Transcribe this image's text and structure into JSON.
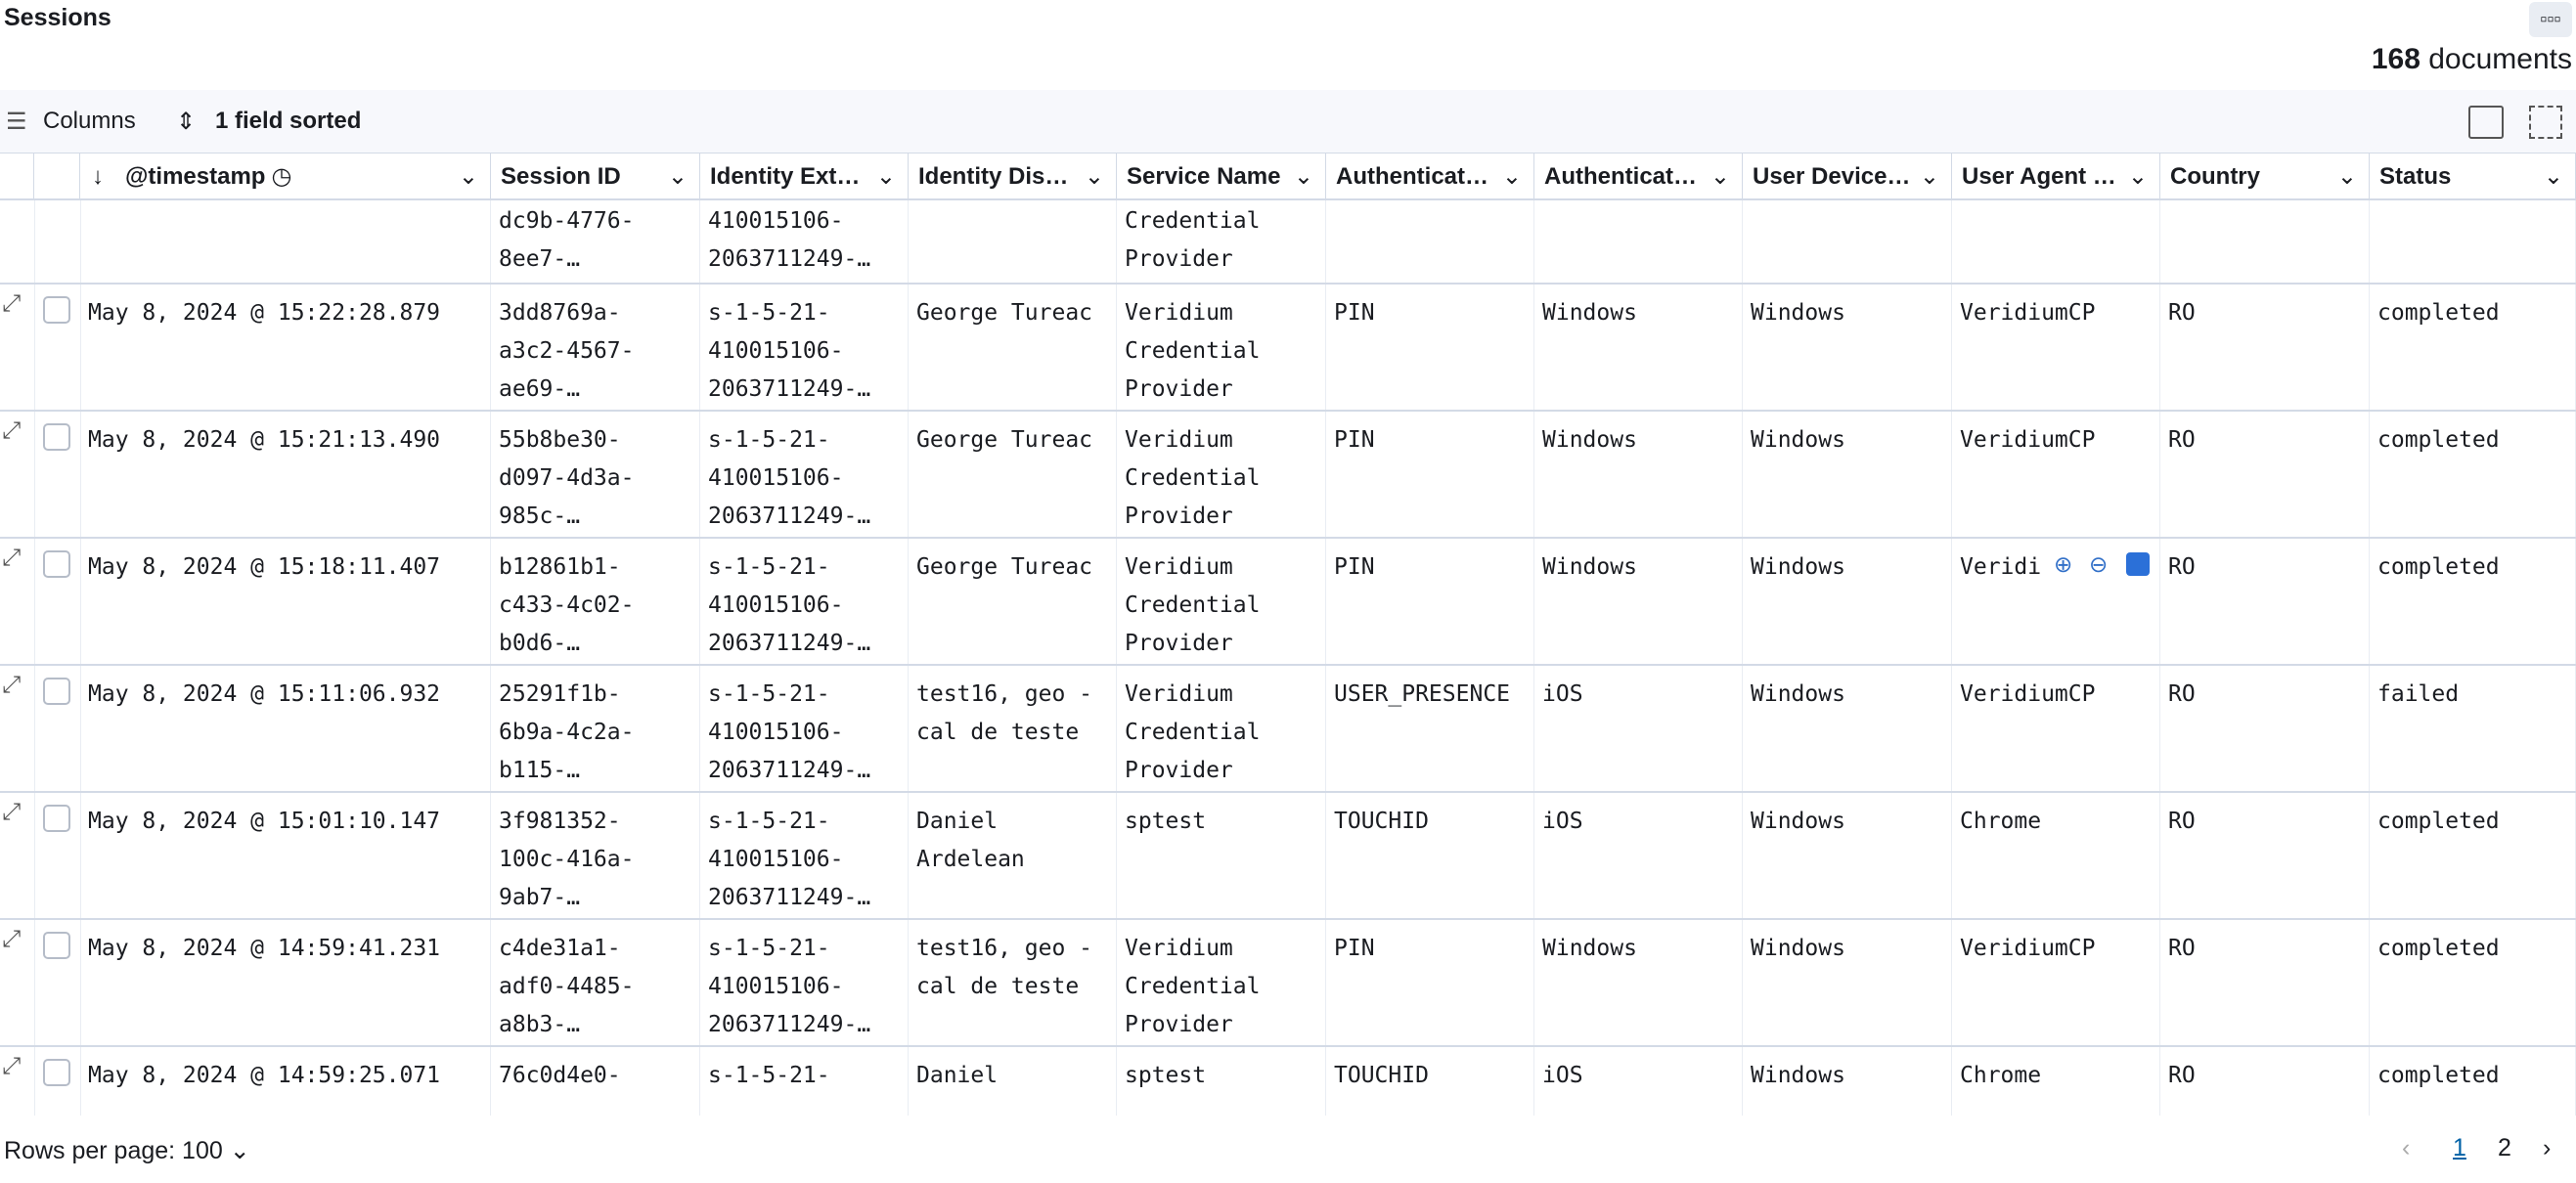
{
  "header": {
    "title": "Sessions",
    "count": "168",
    "count_label": "documents"
  },
  "toolbar": {
    "columns": "Columns",
    "sort": "1 field sorted"
  },
  "table": {
    "columns": [
      "@timestamp",
      "Session ID",
      "Identity Ext…",
      "Identity Dis…",
      "Service Name",
      "Authenticat…",
      "Authenticat…",
      "User Device…",
      "User Agent …",
      "Country",
      "Status"
    ],
    "rows": [
      [
        "",
        "dc9b-4776-\n8ee7-…",
        "410015106-\n2063711249-…",
        "",
        "Credential\nProvider",
        "",
        "",
        "",
        "",
        "",
        ""
      ],
      [
        "May 8, 2024 @ 15:22:28.879",
        "3dd8769a-\na3c2-4567-\nae69-…",
        "s-1-5-21-\n410015106-\n2063711249-…",
        "George Tureac",
        "Veridium\nCredential\nProvider",
        "PIN",
        "Windows",
        "Windows",
        "VeridiumCP",
        "RO",
        "completed"
      ],
      [
        "May 8, 2024 @ 15:21:13.490",
        "55b8be30-\nd097-4d3a-\n985c-…",
        "s-1-5-21-\n410015106-\n2063711249-…",
        "George Tureac",
        "Veridium\nCredential\nProvider",
        "PIN",
        "Windows",
        "Windows",
        "VeridiumCP",
        "RO",
        "completed"
      ],
      [
        "May 8, 2024 @ 15:18:11.407",
        "b12861b1-\nc433-4c02-\nb0d6-…",
        "s-1-5-21-\n410015106-\n2063711249-…",
        "George Tureac",
        "Veridium\nCredential\nProvider",
        "PIN",
        "Windows",
        "Windows",
        "Veridi",
        "RO",
        "completed"
      ],
      [
        "May 8, 2024 @ 15:11:06.932",
        "25291f1b-\n6b9a-4c2a-\nb115-…",
        "s-1-5-21-\n410015106-\n2063711249-…",
        "test16, geo -\ncal de teste",
        "Veridium\nCredential\nProvider",
        "USER_PRESENCE",
        "iOS",
        "Windows",
        "VeridiumCP",
        "RO",
        "failed"
      ],
      [
        "May 8, 2024 @ 15:01:10.147",
        "3f981352-\n100c-416a-\n9ab7-…",
        "s-1-5-21-\n410015106-\n2063711249-…",
        "Daniel\nArdelean",
        "sptest",
        "TOUCHID",
        "iOS",
        "Windows",
        "Chrome",
        "RO",
        "completed"
      ],
      [
        "May 8, 2024 @ 14:59:41.231",
        "c4de31a1-\nadf0-4485-\na8b3-…",
        "s-1-5-21-\n410015106-\n2063711249-…",
        "test16, geo -\ncal de teste",
        "Veridium\nCredential\nProvider",
        "PIN",
        "Windows",
        "Windows",
        "VeridiumCP",
        "RO",
        "completed"
      ],
      [
        "May 8, 2024 @ 14:59:25.071",
        "76c0d4e0-",
        "s-1-5-21-",
        "Daniel",
        "sptest",
        "TOUCHID",
        "iOS",
        "Windows",
        "Chrome",
        "RO",
        "completed"
      ]
    ]
  },
  "footer": {
    "rows_per_page": "Rows per page: 100",
    "pages": [
      "1",
      "2"
    ]
  }
}
